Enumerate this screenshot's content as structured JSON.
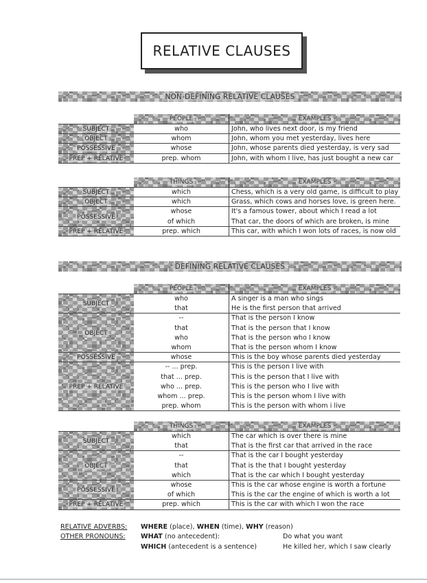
{
  "title": "RELATIVE CLAUSES",
  "sections": [
    {
      "banner": "NON-DEFINING RELATIVE CLAUSES",
      "tables": [
        {
          "col2": "PEOPLE",
          "col3": "EXAMPLES",
          "groups": [
            {
              "label": "SUBJECT",
              "rows": [
                [
                  "who",
                  "John, who lives next door, is my friend"
                ]
              ]
            },
            {
              "label": "OBJECT",
              "rows": [
                [
                  "whom",
                  "John, whom you met yesterday, lives here"
                ]
              ]
            },
            {
              "label": "POSSESSIVE",
              "rows": [
                [
                  "whose",
                  "John, whose parents died yesterday, is very sad"
                ]
              ]
            },
            {
              "label": "PREP + RELATIVE",
              "rows": [
                [
                  "prep.  whom",
                  "John, with whom I live, has just bought a new car"
                ]
              ]
            }
          ]
        },
        {
          "col2": "THINGS",
          "col3": "EXAMPLES",
          "groups": [
            {
              "label": "SUBJECT",
              "rows": [
                [
                  "which",
                  "Chess, which is a very old game, is difficult to play"
                ]
              ]
            },
            {
              "label": "OBJECT",
              "rows": [
                [
                  "which",
                  "Grass, which cows and horses love, is green here."
                ]
              ]
            },
            {
              "label": "POSSESSIVE",
              "rows": [
                [
                  "whose",
                  "It's a famous tower, about which I read a lot"
                ],
                [
                  "of which",
                  "That car, the doors of which are broken, is mine"
                ]
              ]
            },
            {
              "label": "PREP + RELATIVE",
              "rows": [
                [
                  "prep.  which",
                  "This car, with which I won lots of races, is now old"
                ]
              ]
            }
          ]
        }
      ]
    },
    {
      "banner": "DEFINING RELATIVE CLAUSES",
      "tables": [
        {
          "col2": "PEOPLE",
          "col3": "EXAMPLES",
          "groups": [
            {
              "label": "SUBJECT",
              "rows": [
                [
                  "who",
                  "A singer is a man who sings"
                ],
                [
                  "that",
                  "He is the first person that arrived"
                ]
              ]
            },
            {
              "label": "OBJECT",
              "rows": [
                [
                  "--",
                  "That is the person I know"
                ],
                [
                  "that",
                  "That is the person that I know"
                ],
                [
                  "who",
                  "That is the person who I know"
                ],
                [
                  "whom",
                  "That is the person whom I know"
                ]
              ]
            },
            {
              "label": "POSSESSIVE",
              "rows": [
                [
                  "whose",
                  "This is the boy whose parents died yesterday"
                ]
              ]
            },
            {
              "label": "PREP + RELATIVE",
              "rows": [
                [
                  "-- ... prep.",
                  "This is the person I live with"
                ],
                [
                  "that ... prep.",
                  "This is the person that I live with"
                ],
                [
                  "who ... prep.",
                  "This is the person who I live with"
                ],
                [
                  "whom ... prep.",
                  "This is the person whom I live with"
                ],
                [
                  "prep.  whom",
                  "This is the person with whom i live"
                ]
              ]
            }
          ]
        },
        {
          "col2": "THINGS",
          "col3": "EXAMPLES",
          "groups": [
            {
              "label": "SUBJECT",
              "rows": [
                [
                  "which",
                  "The car which is over there is mine"
                ],
                [
                  "that",
                  "That is the first car that arrived in the race"
                ]
              ]
            },
            {
              "label": "OBJECT",
              "rows": [
                [
                  "--",
                  "That is the car I bought yesterday"
                ],
                [
                  "that",
                  "That is the that I bought yesterday"
                ],
                [
                  "which",
                  "That is the car which I bought yesterday"
                ]
              ]
            },
            {
              "label": "POSSESSIVE",
              "rows": [
                [
                  "whose",
                  "This is the car whose engine is worth a fortune"
                ],
                [
                  "of which",
                  "This is the car the engine of which is worth a lot"
                ]
              ]
            },
            {
              "label": "PREP + RELATIVE",
              "rows": [
                [
                  "prep.  which",
                  "This is the car with which I won the race"
                ]
              ]
            }
          ]
        }
      ]
    }
  ],
  "footer": {
    "adverbs_label": "RELATIVE ADVERBS:",
    "adverbs": [
      {
        "word": "WHERE",
        "note": "(place),"
      },
      {
        "word": "WHEN",
        "note": "(time),"
      },
      {
        "word": "WHY",
        "note": "(reason)"
      }
    ],
    "pronouns_label": "OTHER PRONOUNS:",
    "pronouns": [
      {
        "word": "WHAT",
        "note": " (no antecedent):",
        "example": "Do what you want"
      },
      {
        "word": "WHICH",
        "note": "(antecedent is a sentence)",
        "example": "He killed her, which I saw clearly"
      }
    ]
  }
}
